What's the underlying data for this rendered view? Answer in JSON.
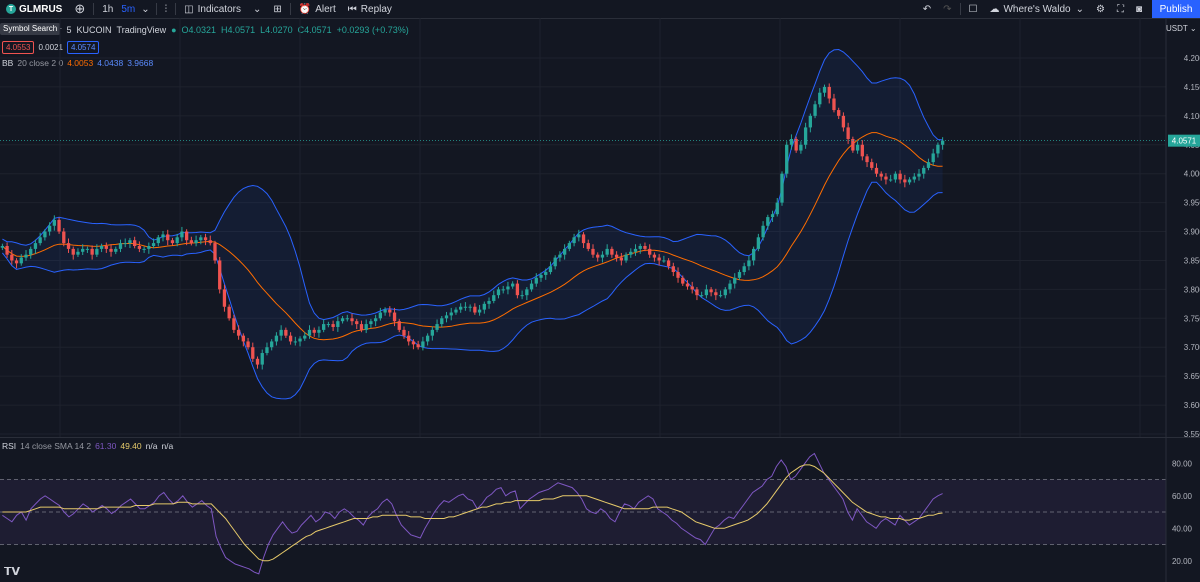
{
  "toolbar": {
    "symbol": "GLMRUS",
    "timeframe": "1h",
    "timeframe_active": "5m",
    "indicators": "Indicators",
    "alert": "Alert",
    "replay": "Replay",
    "layout": "Where's Waldo",
    "publish": "Publish",
    "symbol_search_tooltip": "Symbol Search"
  },
  "legend": {
    "title_suffix": "ther",
    "interval": "5",
    "exchange": "KUCOIN",
    "source": "TradingView",
    "ohlc": {
      "o": "O4.0321",
      "h": "H4.0571",
      "l": "L4.0270",
      "c": "C4.0571",
      "chg": "+0.0293 (+0.73%)"
    },
    "sell": "4.0553",
    "spread": "0.0021",
    "buy": "4.0574"
  },
  "bb_legend": {
    "name": "BB",
    "params": "20 close 2 0",
    "basis": "4.0053",
    "upper": "4.0438",
    "lower": "3.9668"
  },
  "rsi_legend": {
    "name": "RSI",
    "params": "14 close SMA 14 2",
    "rsi": "61.30",
    "sma": "49.40",
    "na1": "n/a",
    "na2": "n/a"
  },
  "currency": "USDT",
  "colors": {
    "up": "#26a69a",
    "down": "#ef5350",
    "bb_band": "#2962ff",
    "bb_basis": "#ff6d00",
    "rsi": "#7e57c2",
    "rsi_sma": "#e5c96a",
    "accent": "#2962ff"
  },
  "chart_data": [
    {
      "type": "candlestick",
      "ylim": [
        3.55,
        4.2
      ],
      "ytick_labels": [
        "4.2000",
        "4.1500",
        "4.1000",
        "4.0500",
        "4.0000",
        "3.9500",
        "3.9000",
        "3.8500",
        "3.8000",
        "3.7500",
        "3.7000",
        "3.6500",
        "3.6000",
        "3.5500"
      ],
      "last_price": "4.0571",
      "close_series": [
        3.875,
        3.86,
        3.85,
        3.845,
        3.855,
        3.86,
        3.87,
        3.88,
        3.89,
        3.9,
        3.91,
        3.92,
        3.9,
        3.88,
        3.87,
        3.86,
        3.865,
        3.87,
        3.87,
        3.86,
        3.87,
        3.875,
        3.87,
        3.865,
        3.87,
        3.88,
        3.88,
        3.885,
        3.875,
        3.87,
        3.87,
        3.875,
        3.88,
        3.89,
        3.895,
        3.885,
        3.88,
        3.89,
        3.9,
        3.885,
        3.88,
        3.885,
        3.89,
        3.885,
        3.88,
        3.85,
        3.8,
        3.77,
        3.75,
        3.73,
        3.72,
        3.71,
        3.7,
        3.68,
        3.67,
        3.69,
        3.7,
        3.71,
        3.72,
        3.73,
        3.72,
        3.71,
        3.71,
        3.715,
        3.72,
        3.73,
        3.725,
        3.73,
        3.74,
        3.74,
        3.735,
        3.745,
        3.75,
        3.75,
        3.745,
        3.74,
        3.73,
        3.74,
        3.745,
        3.75,
        3.76,
        3.765,
        3.76,
        3.745,
        3.73,
        3.72,
        3.71,
        3.705,
        3.7,
        3.71,
        3.72,
        3.73,
        3.74,
        3.75,
        3.755,
        3.76,
        3.765,
        3.77,
        3.77,
        3.77,
        3.76,
        3.765,
        3.775,
        3.78,
        3.79,
        3.8,
        3.8,
        3.805,
        3.81,
        3.79,
        3.79,
        3.8,
        3.81,
        3.82,
        3.825,
        3.83,
        3.84,
        3.855,
        3.86,
        3.87,
        3.88,
        3.89,
        3.895,
        3.88,
        3.87,
        3.86,
        3.855,
        3.86,
        3.87,
        3.86,
        3.855,
        3.85,
        3.86,
        3.865,
        3.87,
        3.875,
        3.87,
        3.86,
        3.855,
        3.85,
        3.85,
        3.84,
        3.83,
        3.82,
        3.81,
        3.805,
        3.8,
        3.79,
        3.79,
        3.8,
        3.795,
        3.79,
        3.79,
        3.8,
        3.81,
        3.82,
        3.83,
        3.84,
        3.85,
        3.87,
        3.89,
        3.91,
        3.925,
        3.93,
        3.95,
        4.0,
        4.05,
        4.06,
        4.04,
        4.05,
        4.08,
        4.1,
        4.12,
        4.14,
        4.15,
        4.13,
        4.11,
        4.1,
        4.08,
        4.06,
        4.04,
        4.05,
        4.03,
        4.02,
        4.01,
        4.0,
        3.995,
        3.99,
        3.99,
        4.0,
        3.99,
        3.985,
        3.99,
        3.995,
        4.0,
        4.01,
        4.02,
        4.035,
        4.05,
        4.0571
      ]
    },
    {
      "type": "line",
      "name": "RSI",
      "ylim": [
        10,
        90
      ],
      "ytick_labels": [
        "80.00",
        "60.00",
        "40.00",
        "20.00"
      ],
      "levels": [
        70,
        50,
        30
      ],
      "rsi_series": [
        48,
        46,
        44,
        48,
        50,
        45,
        52,
        55,
        58,
        60,
        58,
        56,
        54,
        50,
        47,
        49,
        52,
        55,
        53,
        50,
        52,
        54,
        52,
        49,
        51,
        54,
        56,
        58,
        55,
        52,
        52,
        54,
        56,
        60,
        62,
        58,
        55,
        57,
        60,
        56,
        53,
        55,
        57,
        54,
        52,
        35,
        28,
        22,
        20,
        18,
        17,
        16,
        15,
        13,
        12,
        22,
        30,
        36,
        40,
        44,
        40,
        37,
        38,
        42,
        45,
        48,
        44,
        46,
        50,
        49,
        46,
        50,
        52,
        50,
        47,
        45,
        42,
        47,
        50,
        52,
        56,
        58,
        55,
        48,
        42,
        39,
        36,
        35,
        34,
        40,
        45,
        50,
        54,
        57,
        56,
        58,
        60,
        61,
        58,
        57,
        52,
        55,
        59,
        61,
        64,
        65,
        60,
        62,
        63,
        52,
        55,
        58,
        60,
        62,
        63,
        64,
        66,
        68,
        67,
        66,
        65,
        62,
        58,
        52,
        50,
        49,
        52,
        50,
        46,
        44,
        50,
        55,
        54,
        52,
        56,
        58,
        60,
        58,
        52,
        50,
        48,
        45,
        43,
        40,
        38,
        36,
        34,
        33,
        30,
        35,
        40,
        42,
        45,
        47,
        46,
        50,
        54,
        58,
        62,
        64,
        66,
        70,
        72,
        78,
        82,
        78,
        70,
        72,
        76,
        80,
        84,
        86,
        80,
        74,
        70,
        66,
        62,
        58,
        50,
        45,
        52,
        48,
        44,
        42,
        40,
        44,
        46,
        44,
        42,
        48,
        45,
        42,
        44,
        46,
        50,
        54,
        58,
        60,
        61.3
      ],
      "sma_series": [
        50,
        50,
        50,
        50,
        50,
        50,
        51,
        52,
        53,
        53,
        53,
        53,
        53,
        52,
        52,
        52,
        52,
        52,
        52,
        52,
        52,
        53,
        53,
        53,
        53,
        53,
        53,
        53,
        54,
        54,
        54,
        54,
        55,
        55,
        55,
        55,
        55,
        56,
        56,
        56,
        55,
        55,
        55,
        55,
        55,
        52,
        49,
        46,
        42,
        38,
        34,
        30,
        27,
        24,
        21,
        20,
        20,
        21,
        23,
        25,
        27,
        29,
        31,
        33,
        35,
        36,
        38,
        39,
        40,
        41,
        42,
        43,
        44,
        45,
        46,
        46,
        46,
        46,
        47,
        47,
        48,
        48,
        48,
        48,
        48,
        48,
        47,
        47,
        47,
        46,
        46,
        46,
        46,
        46,
        47,
        47,
        48,
        49,
        50,
        51,
        52,
        53,
        53,
        54,
        55,
        55,
        56,
        56,
        57,
        57,
        57,
        57,
        57,
        57,
        58,
        58,
        58,
        59,
        60,
        60,
        60,
        60,
        60,
        60,
        59,
        58,
        57,
        56,
        55,
        54,
        53,
        52,
        52,
        52,
        52,
        52,
        52,
        53,
        53,
        53,
        53,
        52,
        51,
        50,
        48,
        46,
        44,
        43,
        42,
        41,
        40,
        40,
        40,
        41,
        42,
        43,
        44,
        45,
        47,
        49,
        52,
        55,
        59,
        63,
        67,
        71,
        74,
        76,
        78,
        79,
        79,
        78,
        76,
        74,
        71,
        68,
        65,
        62,
        59,
        56,
        54,
        52,
        50,
        49,
        48,
        47,
        47,
        46,
        46,
        46,
        45,
        45,
        46,
        46,
        47,
        48,
        48,
        49,
        49.4
      ]
    }
  ]
}
